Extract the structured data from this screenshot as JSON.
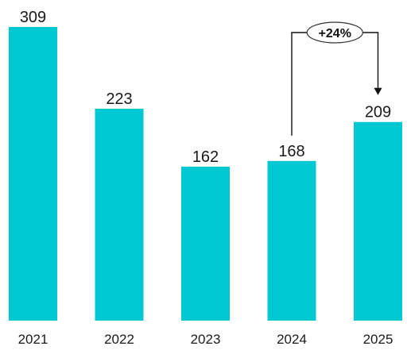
{
  "chart_data": {
    "type": "bar",
    "title": "",
    "xlabel": "",
    "ylabel": "",
    "categories": [
      "2021",
      "2022",
      "2023",
      "2024",
      "2025"
    ],
    "values": [
      309,
      223,
      162,
      168,
      209
    ],
    "value_labels": [
      "309",
      "223",
      "162",
      "168",
      "209"
    ],
    "ylim": [
      0,
      309
    ],
    "grid": false,
    "legend": "none",
    "bar_color": "#00c8d2",
    "annotations": [
      {
        "from": "2024",
        "to": "2025",
        "text": "+24%"
      }
    ]
  }
}
